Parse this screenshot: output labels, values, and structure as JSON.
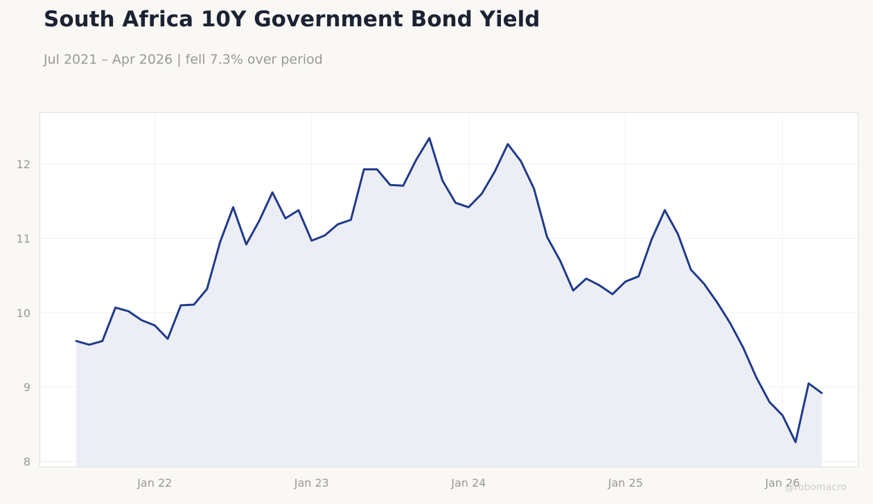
{
  "title": "South Africa 10Y Government Bond Yield",
  "subtitle": "Jul 2021 – Apr 2026 | fell 7.3% over period",
  "watermark": "@robomacro",
  "colors": {
    "line": "#1f3a8a",
    "area": "#eceef5",
    "background": "#f9f8f5",
    "plot_background": "#ffffff",
    "grid": "#efefef"
  },
  "chart_data": {
    "type": "area",
    "x_start": "2021-07",
    "frequency": "monthly",
    "x_ticks": [
      {
        "label": "Jan 22",
        "date": "2022-01"
      },
      {
        "label": "Jan 23",
        "date": "2023-01"
      },
      {
        "label": "Jan 24",
        "date": "2024-01"
      },
      {
        "label": "Jan 25",
        "date": "2025-01"
      },
      {
        "label": "Jan 26",
        "date": "2026-01"
      }
    ],
    "y_ticks": [
      8,
      9,
      10,
      11,
      12
    ],
    "ylim": [
      7.93,
      12.69
    ],
    "grid": true,
    "values": [
      9.62,
      9.57,
      9.62,
      10.07,
      10.02,
      9.9,
      9.83,
      9.65,
      10.1,
      10.11,
      10.32,
      10.95,
      11.42,
      10.92,
      11.24,
      11.62,
      11.27,
      11.38,
      10.97,
      11.04,
      11.19,
      11.25,
      11.93,
      11.93,
      11.72,
      11.71,
      12.06,
      12.35,
      11.78,
      11.48,
      11.42,
      11.6,
      11.9,
      12.27,
      12.04,
      11.67,
      11.02,
      10.7,
      10.3,
      10.46,
      10.37,
      10.25,
      10.42,
      10.49,
      10.99,
      11.38,
      11.06,
      10.58,
      10.39,
      10.14,
      9.86,
      9.53,
      9.13,
      8.8,
      8.62,
      8.26,
      9.05,
      8.92
    ]
  }
}
